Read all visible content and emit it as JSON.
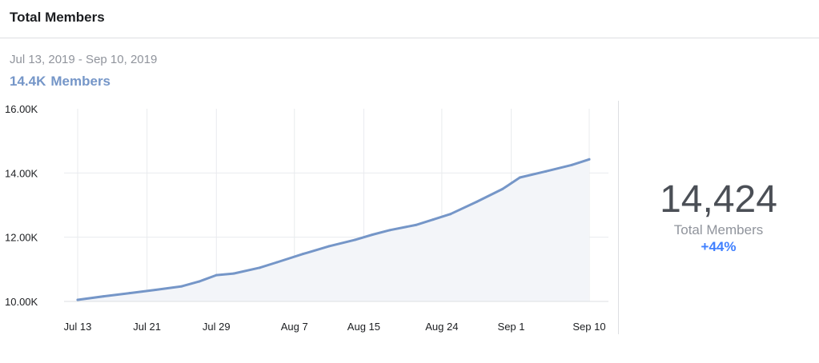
{
  "header": {
    "title": "Total Members"
  },
  "summary": {
    "date_range": "Jul 13, 2019 - Sep 10, 2019",
    "member_value": "14.4K",
    "member_label": "Members"
  },
  "stat": {
    "value": "14,424",
    "label": "Total Members",
    "change": "+44%"
  },
  "colors": {
    "line": "#7596c8",
    "fill": "#f3f5f9",
    "accent": "#4080ff"
  },
  "chart_data": {
    "type": "area",
    "title": "",
    "xlabel": "",
    "ylabel": "",
    "ylim": [
      10000,
      16000
    ],
    "yticks": [
      10000,
      12000,
      14000,
      16000
    ],
    "ytick_labels": [
      "10.00K",
      "12.00K",
      "14.00K",
      "16.00K"
    ],
    "xticks": [
      "Jul 13",
      "Jul 21",
      "Jul 29",
      "Aug 7",
      "Aug 15",
      "Aug 24",
      "Sep 1",
      "Sep 10"
    ],
    "grid": true,
    "series": [
      {
        "values": [
          10050,
          10160,
          10260,
          10360,
          10470,
          10620,
          10820,
          10870,
          11050,
          11220,
          11480,
          11720,
          11920,
          12080,
          12220,
          12380,
          12550,
          12720,
          13100,
          13500,
          13860,
          14050,
          14250,
          14424
        ],
        "dates": [
          "Jul 13",
          "Jul 16",
          "Jul 19",
          "Jul 22",
          "Jul 25",
          "Jul 27",
          "Jul 29",
          "Jul 31",
          "Aug 3",
          "Aug 5",
          "Aug 8",
          "Aug 11",
          "Aug 14",
          "Aug 16",
          "Aug 18",
          "Aug 21",
          "Aug 23",
          "Aug 25",
          "Aug 28",
          "Aug 31",
          "Sep 2",
          "Sep 5",
          "Sep 8",
          "Sep 10"
        ]
      }
    ]
  }
}
